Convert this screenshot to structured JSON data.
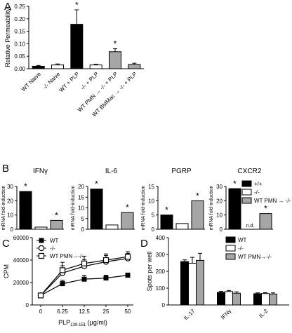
{
  "panels": [
    {
      "letter": "A"
    },
    {
      "letter": "B"
    },
    {
      "letter": "C"
    },
    {
      "letter": "D"
    }
  ],
  "colors": {
    "black": "#000000",
    "white": "#ffffff",
    "gray": "#a6a6a6"
  },
  "chart_data": [
    {
      "panel": "A",
      "type": "bar",
      "ylabel": "Relative Permeability",
      "ylim": [
        0,
        0.25
      ],
      "yticks": [
        "0.00",
        "0.05",
        "0.10",
        "0.15",
        "0.20",
        "0.25"
      ],
      "categories": [
        "WT Naive",
        "-/- Naive",
        "WT + PLP",
        "-/- + PLP",
        "WT PMN → -/- + PLP",
        "WT BMMac → -/- + PLP"
      ],
      "values": [
        0.01,
        0.015,
        0.178,
        0.015,
        0.068,
        0.017
      ],
      "errors": [
        0.003,
        0.004,
        0.058,
        0.003,
        0.012,
        0.005
      ],
      "fills": [
        "black",
        "white",
        "black",
        "white",
        "gray",
        "gray"
      ],
      "significance": [
        "",
        "",
        "*",
        "",
        "*",
        ""
      ]
    },
    {
      "panel": "B",
      "type": "bar",
      "subplots": [
        {
          "title": "IFNγ",
          "ylabel": "mRNA fold-induction",
          "ylim": [
            0,
            30
          ],
          "yticks": [
            "0",
            "10",
            "20",
            "30"
          ],
          "values": [
            26.5,
            1.5,
            6.2
          ],
          "significance": [
            "*",
            "",
            "*"
          ],
          "annotations": [
            "",
            "",
            ""
          ]
        },
        {
          "title": "IL-6",
          "ylabel": "mRNA fold-induction",
          "ylim": [
            0,
            20
          ],
          "yticks": [
            "0",
            "5",
            "10",
            "15",
            "20"
          ],
          "values": [
            18.8,
            2.0,
            7.8
          ],
          "significance": [
            "*",
            "",
            "*"
          ],
          "annotations": [
            "",
            "",
            ""
          ]
        },
        {
          "title": "PGRP",
          "ylabel": "mRNA fold-induction",
          "ylim": [
            0,
            15
          ],
          "yticks": [
            "0",
            "5",
            "10",
            "15"
          ],
          "values": [
            5.0,
            2.0,
            10.0
          ],
          "significance": [
            "*",
            "",
            "*"
          ],
          "annotations": [
            "",
            "",
            ""
          ]
        },
        {
          "title": "CXCR2",
          "ylabel": "mRNA fold-induction",
          "ylim": [
            0,
            30
          ],
          "yticks": [
            "0",
            "10",
            "20",
            "30"
          ],
          "values": [
            28.5,
            0,
            11.0
          ],
          "significance": [
            "*",
            "",
            "*"
          ],
          "annotations": [
            "",
            "n.d.",
            ""
          ]
        }
      ],
      "series_fills": [
        "black",
        "white",
        "gray"
      ],
      "legend": [
        "+/+",
        "-/-",
        "WT PMN → -/-"
      ],
      "legend_position": "right"
    },
    {
      "panel": "C",
      "type": "line",
      "ylabel": "CPM",
      "xlabel_prefix": "PLP",
      "xlabel_sub": "139-151",
      "xlabel_suffix": " (µg/ml)",
      "x": [
        "0",
        "6.25",
        "12.5",
        "25",
        "50"
      ],
      "ylim": [
        0,
        60000
      ],
      "yticks": [
        "0",
        "20000",
        "40000",
        "60000"
      ],
      "series": [
        {
          "name": "WT",
          "marker": "filled-square",
          "values": [
            8500,
            19000,
            23000,
            24000,
            26500
          ],
          "errors": [
            1000,
            3000,
            3500,
            2500,
            2000
          ]
        },
        {
          "name": "-/-",
          "marker": "open-circle",
          "values": [
            8500,
            28500,
            34500,
            38500,
            41500
          ],
          "errors": [
            1000,
            6500,
            6000,
            5500,
            4500
          ]
        },
        {
          "name": "WT PMN→-/-",
          "marker": "open-square",
          "values": [
            8500,
            31000,
            37000,
            40000,
            43000
          ],
          "errors": [
            1000,
            7000,
            6500,
            5500,
            4500
          ]
        }
      ],
      "legend_position": "top-left"
    },
    {
      "panel": "D",
      "type": "bar",
      "ylabel": "Spots per well",
      "ylim": [
        0,
        400
      ],
      "yticks": [
        "0",
        "100",
        "200",
        "300",
        "400"
      ],
      "categories": [
        "IL-17",
        "IFNγ",
        "IL-2"
      ],
      "series": [
        {
          "name": "WT",
          "fill": "black",
          "values": [
            258,
            75,
            67
          ],
          "errors": [
            10,
            6,
            5
          ]
        },
        {
          "name": "-/-",
          "fill": "white",
          "values": [
            248,
            80,
            68
          ],
          "errors": [
            35,
            6,
            5
          ]
        },
        {
          "name": "WT PMN→-/-",
          "fill": "gray",
          "values": [
            265,
            70,
            65
          ],
          "errors": [
            42,
            8,
            7
          ]
        }
      ],
      "legend_position": "top-right"
    }
  ]
}
